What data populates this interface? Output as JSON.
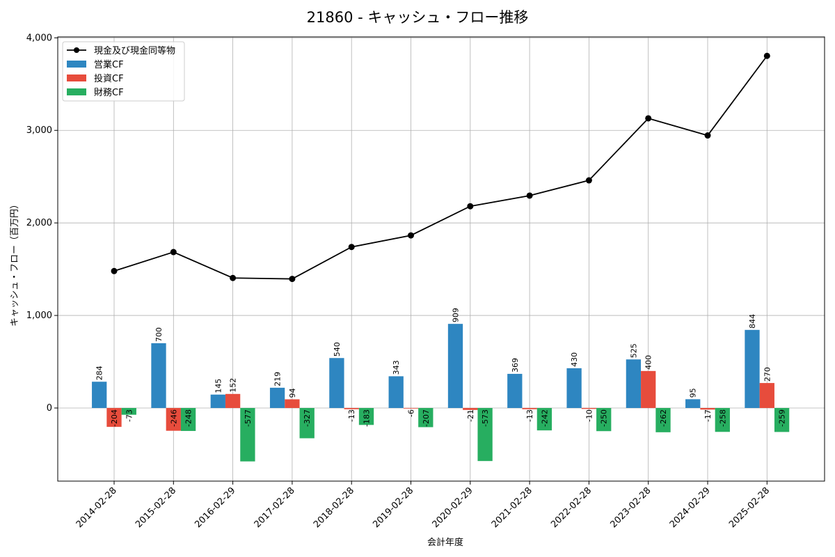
{
  "chart_data": {
    "type": "bar",
    "title": "21860 - キャッシュ・フロー推移",
    "xlabel": "会計年度",
    "ylabel": "キャッシュ・フロー（百万円）",
    "ylim": [
      -790,
      4010
    ],
    "yticks": [
      0,
      1000,
      2000,
      3000,
      4000
    ],
    "ytick_labels": [
      "0",
      "1,000",
      "2,000",
      "3,000",
      "4,000"
    ],
    "grid": true,
    "legend_position": "top-left",
    "categories": [
      "2014-02-28",
      "2015-02-28",
      "2016-02-29",
      "2017-02-28",
      "2018-02-28",
      "2019-02-28",
      "2020-02-29",
      "2021-02-28",
      "2022-02-28",
      "2023-02-28",
      "2024-02-29",
      "2025-02-28"
    ],
    "series": [
      {
        "name": "現金及び現金同等物",
        "kind": "line",
        "color": "#000000",
        "values": [
          1480,
          1685,
          1405,
          1395,
          1740,
          1865,
          2180,
          2295,
          2460,
          3130,
          2945,
          3805
        ]
      },
      {
        "name": "営業CF",
        "kind": "bar",
        "color": "#2e86c1",
        "values": [
          284,
          700,
          145,
          219,
          540,
          343,
          909,
          369,
          430,
          525,
          95,
          844
        ]
      },
      {
        "name": "投資CF",
        "kind": "bar",
        "color": "#e74c3c",
        "values": [
          -204,
          -246,
          152,
          94,
          -13,
          -6,
          -21,
          -13,
          -10,
          400,
          -17,
          270
        ]
      },
      {
        "name": "財務CF",
        "kind": "bar",
        "color": "#27ae60",
        "values": [
          -73,
          -248,
          -577,
          -327,
          -183,
          -207,
          -573,
          -242,
          -250,
          -262,
          -258,
          -259
        ]
      }
    ]
  }
}
